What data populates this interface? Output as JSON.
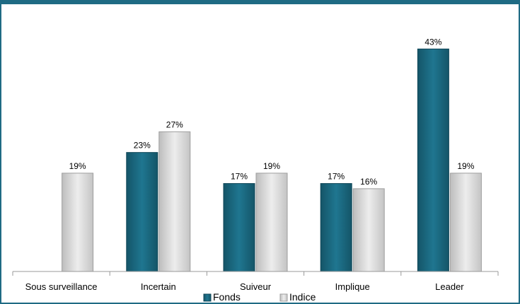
{
  "chart_data": {
    "type": "bar",
    "title": "",
    "xlabel": "",
    "ylabel": "",
    "categories": [
      "Sous surveillance",
      "Incertain",
      "Suiveur",
      "Implique",
      "Leader"
    ],
    "series": [
      {
        "name": "Fonds",
        "values": [
          null,
          23,
          17,
          17,
          43
        ],
        "labels": [
          "",
          "23%",
          "17%",
          "17%",
          "43%"
        ],
        "color": "#1b6b84"
      },
      {
        "name": "Indice",
        "values": [
          19,
          27,
          19,
          16,
          19
        ],
        "labels": [
          "19%",
          "27%",
          "19%",
          "16%",
          "19%"
        ],
        "color": "#e0e0e0"
      }
    ],
    "ylim": [
      0,
      47
    ],
    "grid": false,
    "legend": "bottom"
  },
  "colors": {
    "frame": "#1f6b84",
    "fonds": "#1b6b84",
    "indice": "#e0e0e0",
    "axis": "#999999"
  }
}
